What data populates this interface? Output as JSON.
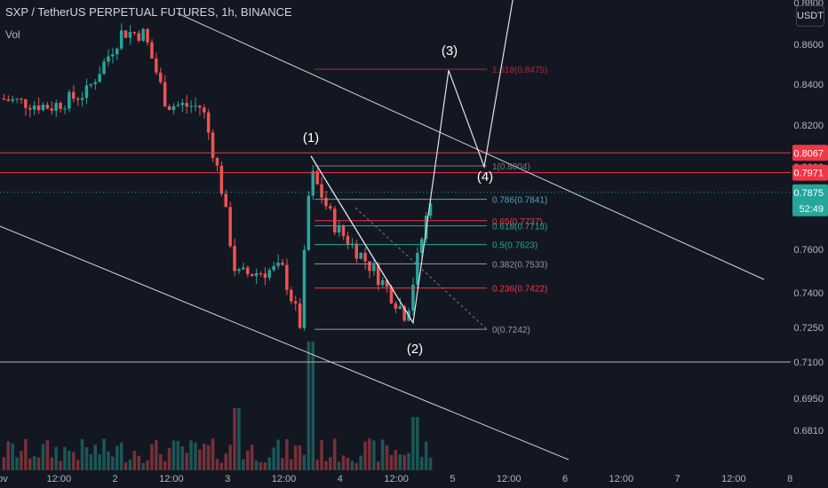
{
  "header": {
    "title": "SXP / TetherUS PERPETUAL FUTURES, 1h, BINANCE",
    "volume_label": "Vol"
  },
  "axis": {
    "unit_button": "USDT",
    "price_ticks": [
      "0.8800",
      "0.8600",
      "0.8400",
      "0.8200",
      "0.8000",
      "0.7800",
      "0.7600",
      "0.7400",
      "0.7250",
      "0.7100",
      "0.6950",
      "0.6810"
    ],
    "time_ticks": [
      "ov",
      "12:00",
      "2",
      "12:00",
      "3",
      "12:00",
      "4",
      "12:00",
      "5",
      "12:00",
      "6",
      "12:00",
      "7",
      "12:00",
      "8"
    ],
    "current_price": "0.7875",
    "countdown": "52:49"
  },
  "colors": {
    "background": "#131722",
    "bull": "#26a69a",
    "bear": "#ef5350",
    "channel": "#d1d4dc",
    "resistance": "#f23645",
    "text": "#b2b5be"
  },
  "levels": [
    {
      "price": 0.8067,
      "label": "0.8067",
      "color": "#f23645"
    },
    {
      "price": 0.7971,
      "label": "0.7971",
      "color": "#f23645"
    },
    {
      "price": 0.71,
      "label": "",
      "color": "#b2b5be"
    }
  ],
  "fibonacci": [
    {
      "ratio": "1.618",
      "label": "1.618(0.8475)",
      "price": 0.8475,
      "color": "#b22833"
    },
    {
      "ratio": "1",
      "label": "1(0.8004)",
      "price": 0.8004,
      "color": "#787b86"
    },
    {
      "ratio": "0.786",
      "label": "0.786(0.7841)",
      "price": 0.7841,
      "color": "#5fa0b5"
    },
    {
      "ratio": "0.65",
      "label": "0.65(0.7737)",
      "price": 0.7737,
      "color": "#f23645"
    },
    {
      "ratio": "0.618",
      "label": "0.618(0.7713)",
      "price": 0.7713,
      "color": "#26a69a"
    },
    {
      "ratio": "0.5",
      "label": "0.5(0.7623)",
      "price": 0.7623,
      "color": "#26a69a"
    },
    {
      "ratio": "0.382",
      "label": "0.382(0.7533)",
      "price": 0.7533,
      "color": "#9598a1"
    },
    {
      "ratio": "0.236",
      "label": "0.236(0.7422)",
      "price": 0.7422,
      "color": "#f23645"
    },
    {
      "ratio": "0",
      "label": "0(0.7242)",
      "price": 0.7242,
      "color": "#9598a1"
    }
  ],
  "waves": [
    "(1)",
    "(2)",
    "(3)",
    "(4)"
  ],
  "chart_data": {
    "type": "candlestick",
    "symbol": "SXP / TetherUS PERPETUAL FUTURES",
    "interval": "1h",
    "exchange": "BINANCE",
    "ylim": [
      0.676,
      0.89
    ],
    "close_series_approx": [
      {
        "x": "1 ~06:00",
        "y": 0.833
      },
      {
        "x": "1 12:00",
        "y": 0.829
      },
      {
        "x": "1 ~20:00",
        "y": 0.836
      },
      {
        "x": "2 00:00",
        "y": 0.866
      },
      {
        "x": "2 ~06:00",
        "y": 0.865
      },
      {
        "x": "2 12:00",
        "y": 0.835
      },
      {
        "x": "2 ~20:00",
        "y": 0.829
      },
      {
        "x": "3 00:00",
        "y": 0.794
      },
      {
        "x": "3 ~03:00",
        "y": 0.748
      },
      {
        "x": "3 12:00",
        "y": 0.751
      },
      {
        "x": "3 ~18:00",
        "y": 0.726
      },
      {
        "x": "3 ~20:00",
        "y": 0.798
      },
      {
        "x": "4 00:00",
        "y": 0.771
      },
      {
        "x": "4 ~08:00",
        "y": 0.752
      },
      {
        "x": "4 ~15:00",
        "y": 0.73
      },
      {
        "x": "4 ~19:00",
        "y": 0.787
      }
    ]
  }
}
